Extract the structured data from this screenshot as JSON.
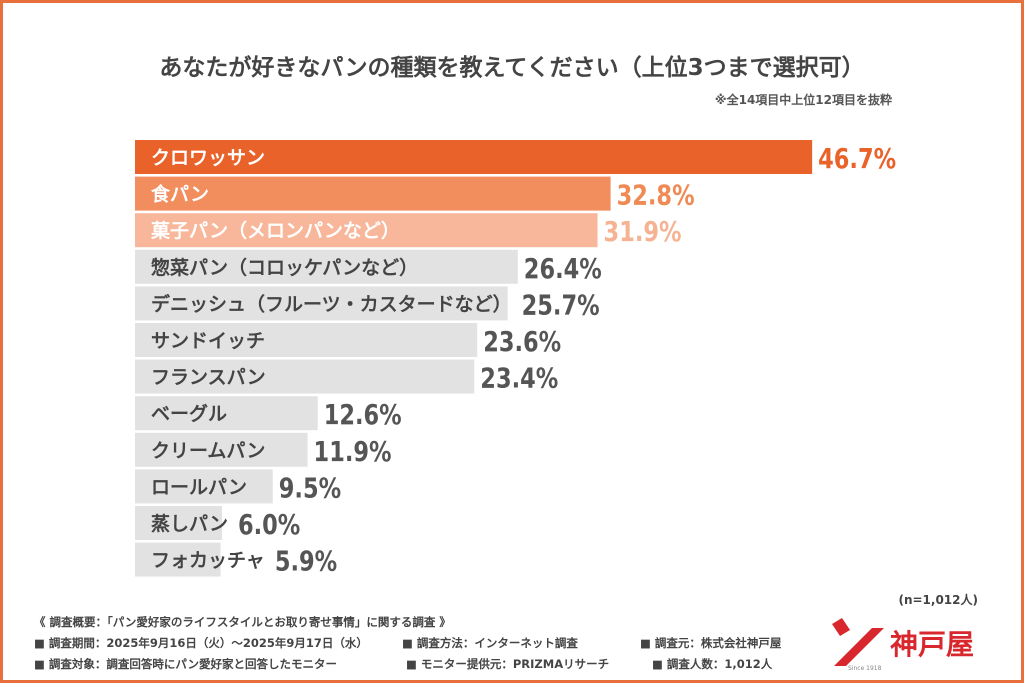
{
  "chart_data": {
    "type": "bar",
    "orientation": "horizontal",
    "title": "あなたが好きなパンの種類を教えてください（上位3つまで選択可）",
    "note": "※全14項目中上位12項目を抜粋",
    "categories": [
      "クロワッサン",
      "食パン",
      "菓子パン（メロンパンなど）",
      "惣菜パン（コロッケパンなど）",
      "デニッシュ（フルーツ・カスタードなど）",
      "サンドイッチ",
      "フランスパン",
      "ベーグル",
      "クリームパン",
      "ロールパン",
      "蒸しパン",
      "フォカッチャ"
    ],
    "values": [
      46.7,
      32.8,
      31.9,
      26.4,
      25.7,
      23.6,
      23.4,
      12.6,
      11.9,
      9.5,
      6.0,
      5.9
    ],
    "value_labels": [
      "46.7%",
      "32.8%",
      "31.9%",
      "26.4%",
      "25.7%",
      "23.6%",
      "23.4%",
      "12.6%",
      "11.9%",
      "9.5%",
      "6.0%",
      "5.9%"
    ],
    "bar_colors": [
      "#e8622a",
      "#f28d5e",
      "#f8b79a",
      "#e2e2e2",
      "#e2e2e2",
      "#e2e2e2",
      "#e2e2e2",
      "#e2e2e2",
      "#e2e2e2",
      "#e2e2e2",
      "#e2e2e2",
      "#e2e2e2"
    ],
    "label_colors": [
      "#e8622a",
      "#f08a55",
      "#f6b393",
      "#555555",
      "#555555",
      "#555555",
      "#555555",
      "#555555",
      "#555555",
      "#555555",
      "#555555",
      "#555555"
    ],
    "grid": false,
    "legend": "none"
  },
  "sample_size": "(n=1,012人)",
  "footer": {
    "line1": "《 調査概要：「パン愛好家のライフスタイルとお取り寄せ事情」に関する調査 》",
    "period": "■ 調査期間：2025年9月16日（火）～2025年9月17日（水）",
    "method": "■ 調査方法：インターネット調査",
    "source": "■ 調査元：株式会社神戸屋",
    "target": "■ 調査対象：調査回答時にパン愛好家と回答したモニター",
    "provider": "■ モニター提供元：PRIZMAリサーチ",
    "count": "■ 調査人数：1,012人"
  },
  "logo": {
    "name": "神戸屋",
    "since": "Since 1918",
    "color": "#d8282e"
  }
}
